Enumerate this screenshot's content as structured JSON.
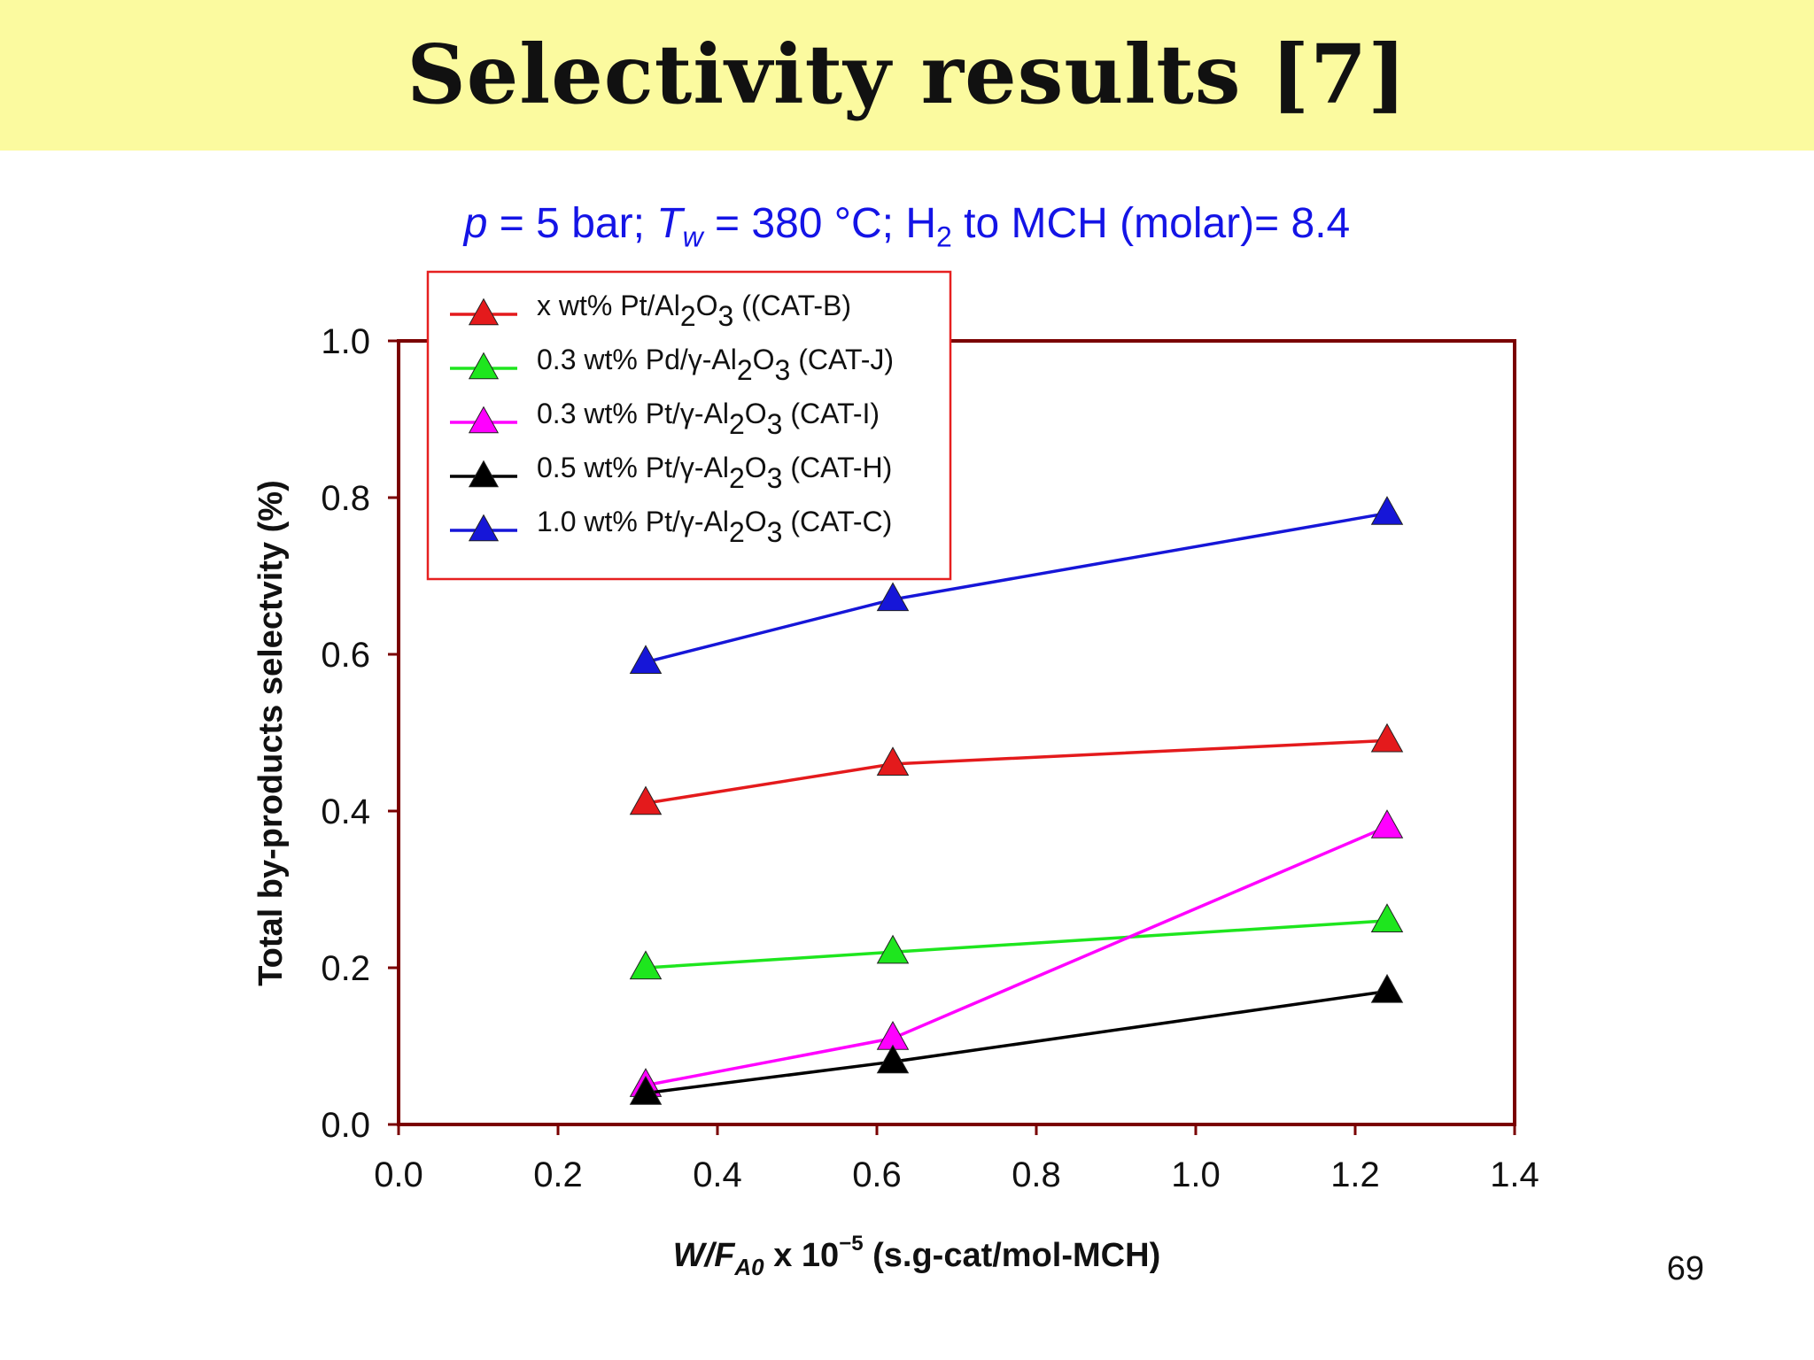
{
  "slide": {
    "title": "Selectivity results [7]",
    "page_number": "69",
    "conditions": {
      "p_var": "p",
      "p_text": " = 5 bar; ",
      "t_var": "T",
      "t_sub": "w",
      "t_text": " = 380 °C; H",
      "h_sub": "2",
      "h_text": " to MCH (molar)= 8.4"
    }
  },
  "colors": {
    "title_band": "#fbfa9f",
    "frame": "#7a0000",
    "legend_border": "#e62020",
    "conditions_text": "#1414e6"
  },
  "chart_data": {
    "type": "line",
    "title": "p = 5 bar; Tw = 380 °C; H2 to MCH (molar)= 8.4",
    "xlabel": {
      "italic": "W/F",
      "italic_sub": "A0",
      "mid": " x 10",
      "sup": "−5",
      "tail": " (s.g-cat/mol-MCH)"
    },
    "ylabel": "Total by-products selectvity (%)",
    "xlim": [
      0.0,
      1.4
    ],
    "ylim": [
      0.0,
      1.0
    ],
    "x_ticks": [
      0.0,
      0.2,
      0.4,
      0.6,
      0.8,
      1.0,
      1.2,
      1.4
    ],
    "y_ticks": [
      0.0,
      0.2,
      0.4,
      0.6,
      0.8,
      1.0
    ],
    "grid": false,
    "legend_position": "top-left",
    "marker": "triangle",
    "x": [
      0.31,
      0.62,
      1.24
    ],
    "series": [
      {
        "name": "CAT-B",
        "color": "#e41a1c",
        "values": [
          0.41,
          0.46,
          0.49
        ],
        "legend": [
          {
            "t": "x wt% Pt/Al"
          },
          {
            "t": "2",
            "sub": true
          },
          {
            "t": "O"
          },
          {
            "t": "3",
            "sub": true
          },
          {
            "t": " ((CAT-B)"
          }
        ]
      },
      {
        "name": "CAT-J",
        "color": "#1ee61e",
        "values": [
          0.2,
          0.22,
          0.26
        ],
        "legend": [
          {
            "t": "0.3 wt% Pd/γ-Al"
          },
          {
            "t": "2",
            "sub": true
          },
          {
            "t": "O"
          },
          {
            "t": "3",
            "sub": true
          },
          {
            "t": " (CAT-J)"
          }
        ]
      },
      {
        "name": "CAT-I",
        "color": "#ff00ff",
        "values": [
          0.05,
          0.11,
          0.38
        ],
        "legend": [
          {
            "t": "0.3 wt% Pt/γ-Al"
          },
          {
            "t": "2",
            "sub": true
          },
          {
            "t": "O"
          },
          {
            "t": "3",
            "sub": true
          },
          {
            "t": " (CAT-I)"
          }
        ]
      },
      {
        "name": "CAT-H",
        "color": "#000000",
        "values": [
          0.04,
          0.08,
          0.17
        ],
        "legend": [
          {
            "t": "0.5 wt% Pt/γ-Al"
          },
          {
            "t": "2",
            "sub": true
          },
          {
            "t": "O"
          },
          {
            "t": "3",
            "sub": true
          },
          {
            "t": " (CAT-H)"
          }
        ]
      },
      {
        "name": "CAT-C",
        "color": "#1616d8",
        "values": [
          0.59,
          0.67,
          0.78
        ],
        "legend": [
          {
            "t": "1.0 wt% Pt/γ-Al"
          },
          {
            "t": "2",
            "sub": true
          },
          {
            "t": "O"
          },
          {
            "t": "3",
            "sub": true
          },
          {
            "t": " (CAT-C)"
          }
        ]
      }
    ]
  }
}
